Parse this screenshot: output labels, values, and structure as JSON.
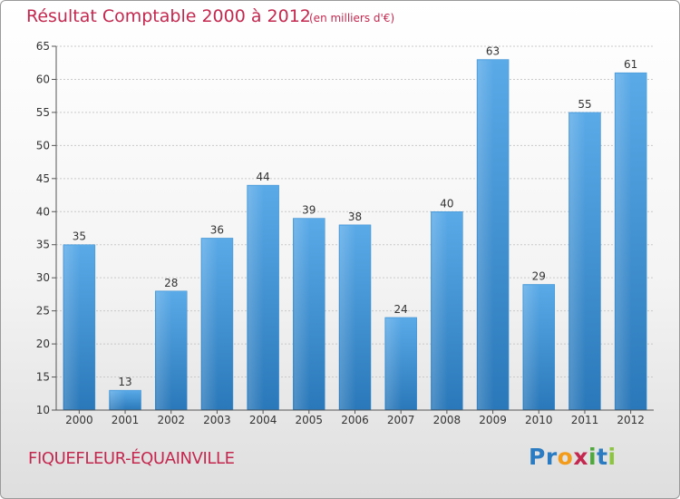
{
  "chart_data": {
    "type": "bar",
    "title": "Résultat Comptable 2000 à 2012",
    "subtitle": "(en milliers d'€)",
    "categories": [
      "2000",
      "2001",
      "2002",
      "2003",
      "2004",
      "2005",
      "2006",
      "2007",
      "2008",
      "2009",
      "2010",
      "2011",
      "2012"
    ],
    "values": [
      35,
      13,
      28,
      36,
      44,
      39,
      38,
      24,
      40,
      63,
      29,
      55,
      61
    ],
    "ylim": [
      10,
      65
    ],
    "yticks": [
      10,
      15,
      20,
      25,
      30,
      35,
      40,
      45,
      50,
      55,
      60,
      65
    ],
    "xlabel": "",
    "ylabel": "",
    "grid": true,
    "bar_color": "#3d8fd1"
  },
  "footer": {
    "commune": "FIQUEFLEUR-ÉQUAINVILLE",
    "logo": {
      "p1": "Pr",
      "p2": "o",
      "p3": "x",
      "p4": "i",
      "p5": "t",
      "p6": "i"
    }
  }
}
